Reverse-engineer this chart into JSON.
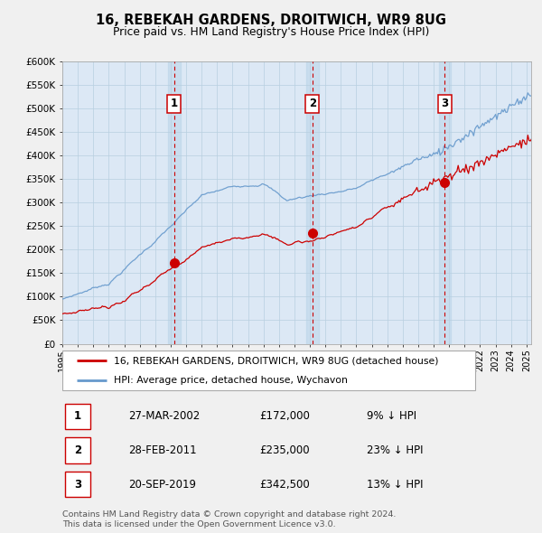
{
  "title": "16, REBEKAH GARDENS, DROITWICH, WR9 8UG",
  "subtitle": "Price paid vs. HM Land Registry's House Price Index (HPI)",
  "legend_label_red": "16, REBEKAH GARDENS, DROITWICH, WR9 8UG (detached house)",
  "legend_label_blue": "HPI: Average price, detached house, Wychavon",
  "footer1": "Contains HM Land Registry data © Crown copyright and database right 2024.",
  "footer2": "This data is licensed under the Open Government Licence v3.0.",
  "ylim": [
    0,
    600000
  ],
  "yticks": [
    0,
    50000,
    100000,
    150000,
    200000,
    250000,
    300000,
    350000,
    400000,
    450000,
    500000,
    550000,
    600000
  ],
  "ytick_labels": [
    "£0",
    "£50K",
    "£100K",
    "£150K",
    "£200K",
    "£250K",
    "£300K",
    "£350K",
    "£400K",
    "£450K",
    "£500K",
    "£550K",
    "£600K"
  ],
  "sale_points": [
    {
      "label": "1",
      "date": "27-MAR-2002",
      "price": 172000,
      "year": 2002.23,
      "hpi_diff": "9% ↓ HPI"
    },
    {
      "label": "2",
      "date": "28-FEB-2011",
      "price": 235000,
      "year": 2011.16,
      "hpi_diff": "23% ↓ HPI"
    },
    {
      "label": "3",
      "date": "20-SEP-2019",
      "price": 342500,
      "year": 2019.72,
      "hpi_diff": "13% ↓ HPI"
    }
  ],
  "red_color": "#cc0000",
  "blue_color": "#6699cc",
  "plot_bg_color": "#dce8f5",
  "grid_color": "#b8cfe0",
  "vline_color": "#cc0000",
  "fig_bg_color": "#f0f0f0"
}
